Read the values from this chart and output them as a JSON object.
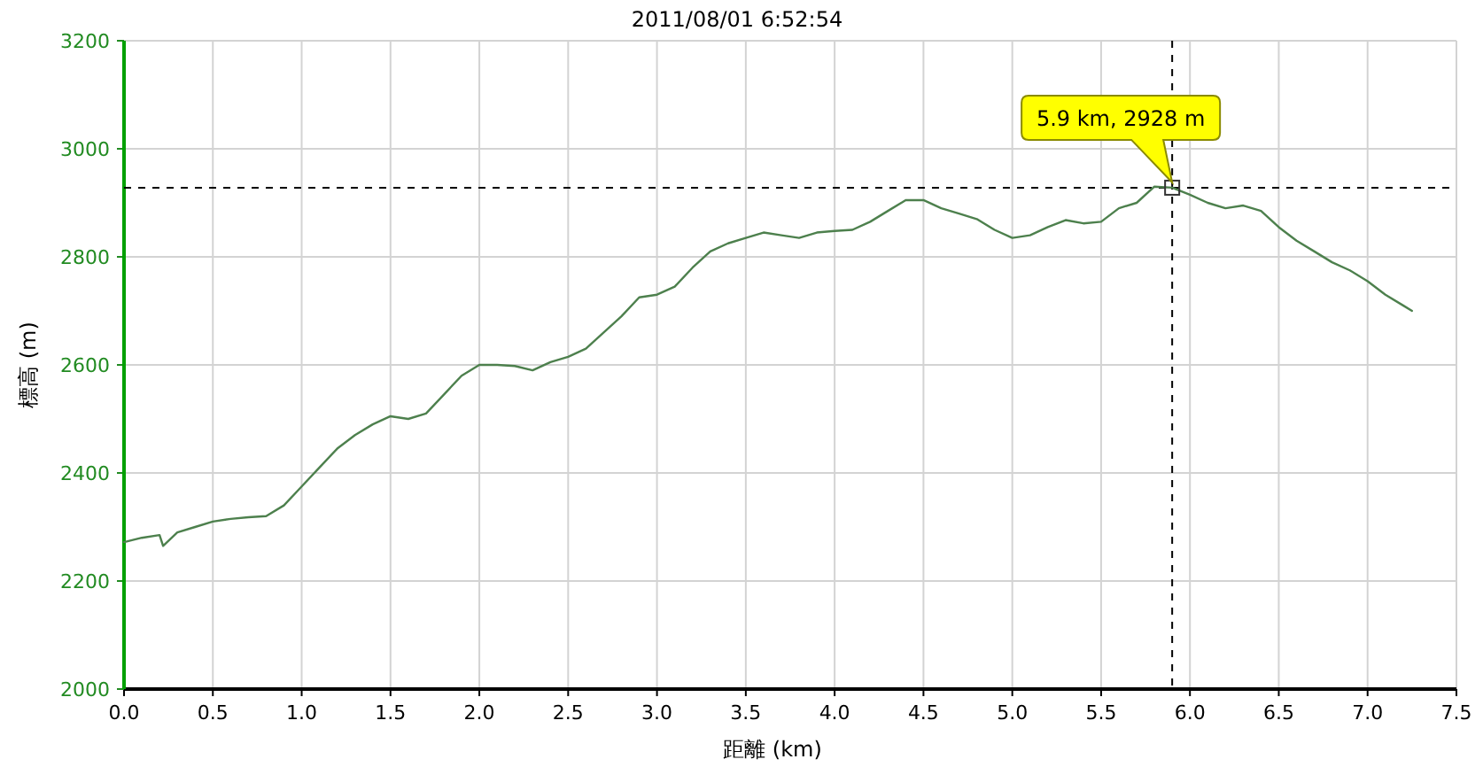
{
  "chart_data": {
    "type": "line",
    "title": "2011/08/01 6:52:54",
    "xlabel": "距離 (km)",
    "ylabel": "標高 (m)",
    "x": [
      0.0,
      0.1,
      0.2,
      0.22,
      0.3,
      0.4,
      0.5,
      0.6,
      0.7,
      0.8,
      0.9,
      1.0,
      1.1,
      1.2,
      1.3,
      1.4,
      1.5,
      1.6,
      1.7,
      1.8,
      1.9,
      2.0,
      2.1,
      2.2,
      2.3,
      2.4,
      2.5,
      2.6,
      2.7,
      2.8,
      2.9,
      3.0,
      3.1,
      3.2,
      3.3,
      3.4,
      3.5,
      3.6,
      3.7,
      3.8,
      3.9,
      4.0,
      4.1,
      4.2,
      4.3,
      4.4,
      4.5,
      4.6,
      4.7,
      4.8,
      4.9,
      5.0,
      5.1,
      5.2,
      5.3,
      5.4,
      5.5,
      5.6,
      5.7,
      5.8,
      5.9,
      6.0,
      6.1,
      6.2,
      6.3,
      6.4,
      6.5,
      6.6,
      6.7,
      6.8,
      6.9,
      7.0,
      7.1,
      7.2,
      7.25
    ],
    "series": [
      {
        "color": "#4d804d",
        "values": [
          2272,
          2280,
          2285,
          2265,
          2290,
          2300,
          2310,
          2315,
          2318,
          2320,
          2340,
          2375,
          2410,
          2445,
          2470,
          2490,
          2505,
          2500,
          2510,
          2545,
          2580,
          2600,
          2600,
          2598,
          2590,
          2605,
          2615,
          2630,
          2660,
          2690,
          2725,
          2730,
          2745,
          2780,
          2810,
          2825,
          2835,
          2845,
          2840,
          2835,
          2845,
          2848,
          2850,
          2865,
          2885,
          2905,
          2905,
          2890,
          2880,
          2870,
          2850,
          2835,
          2840,
          2855,
          2868,
          2862,
          2865,
          2890,
          2900,
          2930,
          2928,
          2915,
          2900,
          2890,
          2895,
          2885,
          2855,
          2830,
          2810,
          2790,
          2775,
          2755,
          2730,
          2710,
          2700
        ]
      }
    ],
    "xlim": [
      0,
      7.5
    ],
    "ylim": [
      2000,
      3200
    ],
    "xticks": [
      {
        "value": 0,
        "label": "0.0"
      },
      {
        "value": 0.5,
        "label": "0.5"
      },
      {
        "value": 1,
        "label": "1.0"
      },
      {
        "value": 1.5,
        "label": "1.5"
      },
      {
        "value": 2,
        "label": "2.0"
      },
      {
        "value": 2.5,
        "label": "2.5"
      },
      {
        "value": 3,
        "label": "3.0"
      },
      {
        "value": 3.5,
        "label": "3.5"
      },
      {
        "value": 4,
        "label": "4.0"
      },
      {
        "value": 4.5,
        "label": "4.5"
      },
      {
        "value": 5,
        "label": "5.0"
      },
      {
        "value": 5.5,
        "label": "5.5"
      },
      {
        "value": 6,
        "label": "6.0"
      },
      {
        "value": 6.5,
        "label": "6.5"
      },
      {
        "value": 7,
        "label": "7.0"
      },
      {
        "value": 7.5,
        "label": "7.5"
      }
    ],
    "yticks": [
      2000,
      2200,
      2400,
      2600,
      2800,
      3000,
      3200
    ],
    "ref_lines": [
      {
        "axis": "x",
        "value": 5.9,
        "color": "#000000",
        "line_style": "dashed"
      },
      {
        "axis": "y",
        "value": 2928,
        "color": "#000000",
        "line_style": "dashed"
      }
    ],
    "annotations": [
      {
        "text": "5.9 km, 2928 m",
        "x": 5.9,
        "y": 2928
      }
    ],
    "grid": true,
    "marker": "none",
    "line_style": "solid"
  }
}
